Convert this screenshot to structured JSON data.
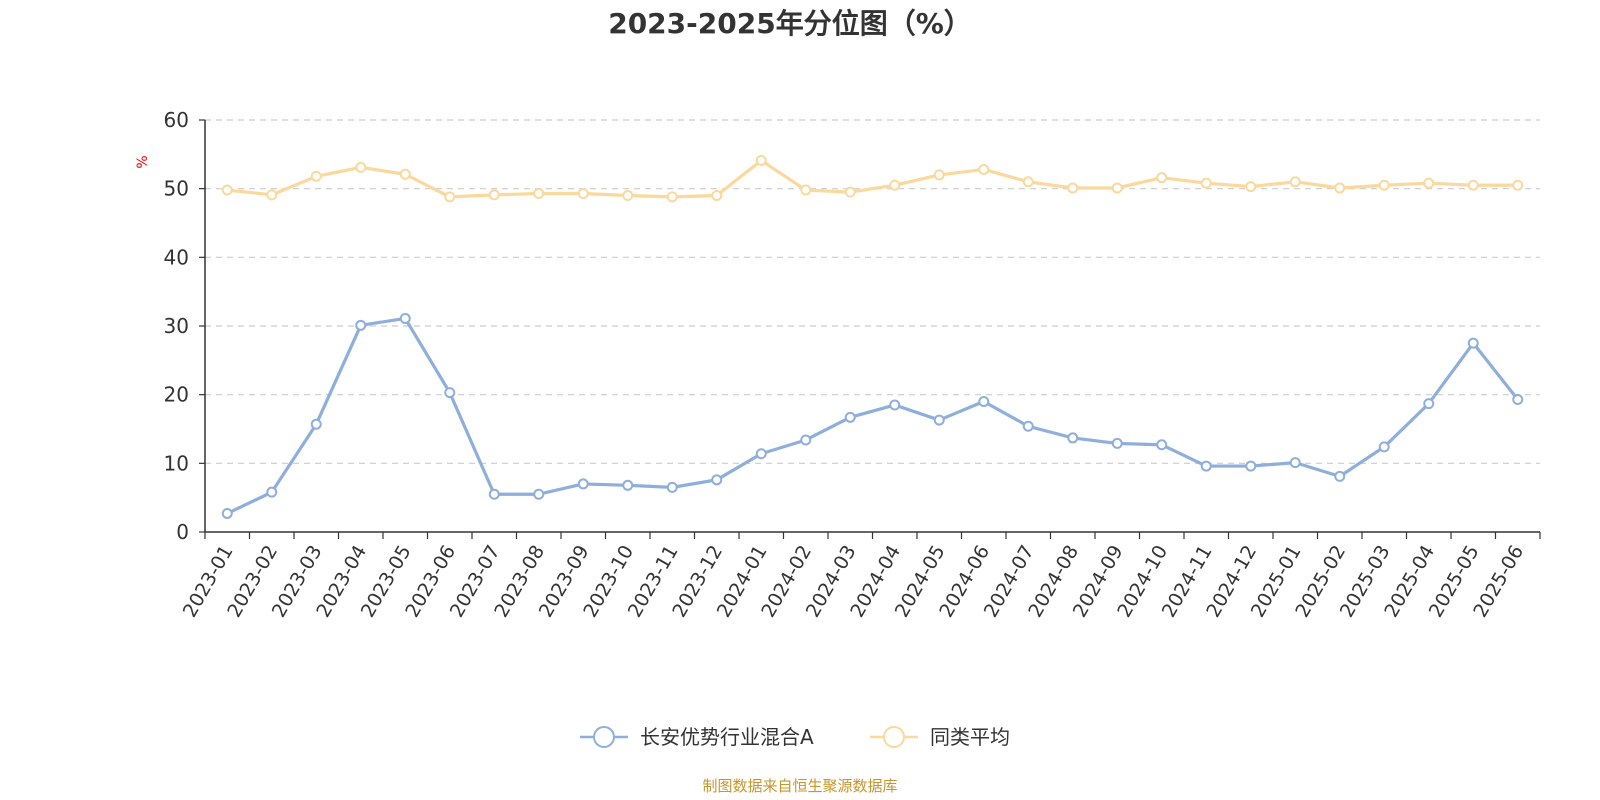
{
  "chart_data": {
    "type": "line",
    "title": "2023-2025年分位图（%）",
    "y_unit": "%",
    "ylim": [
      0,
      60
    ],
    "yticks": [
      0,
      10,
      20,
      30,
      40,
      50,
      60
    ],
    "grid": true,
    "legend_position": "bottom",
    "categories": [
      "2023-01",
      "2023-02",
      "2023-03",
      "2023-04",
      "2023-05",
      "2023-06",
      "2023-07",
      "2023-08",
      "2023-09",
      "2023-10",
      "2023-11",
      "2023-12",
      "2024-01",
      "2024-02",
      "2024-03",
      "2024-04",
      "2024-05",
      "2024-06",
      "2024-07",
      "2024-08",
      "2024-09",
      "2024-10",
      "2024-11",
      "2024-12",
      "2025-01",
      "2025-02",
      "2025-03",
      "2025-04",
      "2025-05",
      "2025-06"
    ],
    "series": [
      {
        "name": "长安优势行业混合A",
        "color": "#8eaedb",
        "values": [
          2.7,
          5.8,
          15.7,
          30.1,
          31.1,
          20.3,
          5.5,
          5.5,
          7.0,
          6.8,
          6.5,
          7.6,
          11.4,
          13.4,
          16.7,
          18.5,
          16.3,
          19.0,
          15.4,
          13.7,
          12.9,
          12.7,
          9.6,
          9.6,
          10.1,
          8.1,
          12.4,
          18.7,
          27.5,
          19.3
        ]
      },
      {
        "name": "同类平均",
        "color": "#fbd89c",
        "values": [
          49.8,
          49.1,
          51.8,
          53.1,
          52.1,
          48.8,
          49.1,
          49.3,
          49.3,
          49.0,
          48.8,
          49.0,
          54.1,
          49.8,
          49.5,
          50.5,
          52.0,
          52.8,
          51.0,
          50.1,
          50.1,
          51.6,
          50.8,
          50.3,
          51.0,
          50.1,
          50.5,
          50.8,
          50.5,
          50.5
        ]
      }
    ]
  },
  "source_text": "制图数据来自恒生聚源数据库",
  "colors": {
    "title": "#333333",
    "axis": "#333333",
    "grid": "#cccccc",
    "unit": "#ff0000",
    "source": "#c8952b"
  }
}
